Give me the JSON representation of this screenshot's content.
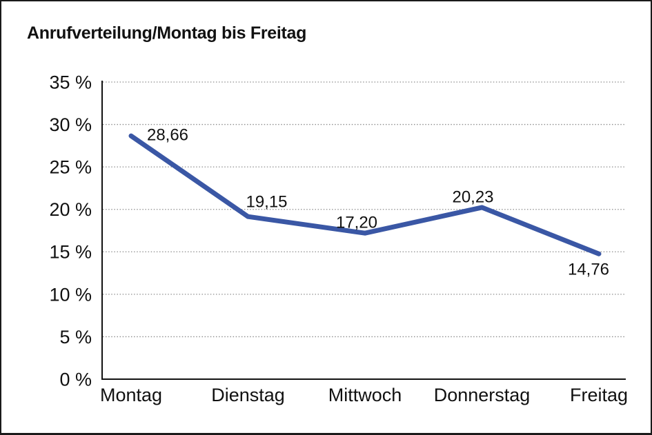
{
  "window": {
    "background": "#ffffff",
    "border_color": "#1a1a1a"
  },
  "chart_data": {
    "type": "line",
    "title": "Anrufverteilung/Montag bis Freitag",
    "categories": [
      "Montag",
      "Dienstag",
      "Mittwoch",
      "Donnerstag",
      "Freitag"
    ],
    "series": [
      {
        "name": "Anrufverteilung",
        "values": [
          28.66,
          19.15,
          17.2,
          20.23,
          14.76
        ]
      }
    ],
    "point_labels": [
      "28,66",
      "19,15",
      "17,20",
      "20,23",
      "14,76"
    ],
    "y_ticks": [
      {
        "value": 0,
        "label": "0 %"
      },
      {
        "value": 5,
        "label": "5 %"
      },
      {
        "value": 10,
        "label": "10 %"
      },
      {
        "value": 15,
        "label": "15 %"
      },
      {
        "value": 20,
        "label": "20 %"
      },
      {
        "value": 25,
        "label": "25 %"
      },
      {
        "value": 30,
        "label": "30 %"
      },
      {
        "value": 35,
        "label": "35 %"
      }
    ],
    "ylim": [
      0,
      35
    ],
    "xlabel": "",
    "ylabel": "",
    "grid": "horizontal-dotted",
    "legend": "none",
    "colors": {
      "line": "#3A57A5",
      "grid": "#8C8C8C",
      "axis": "#111111",
      "text": "#111111"
    }
  }
}
